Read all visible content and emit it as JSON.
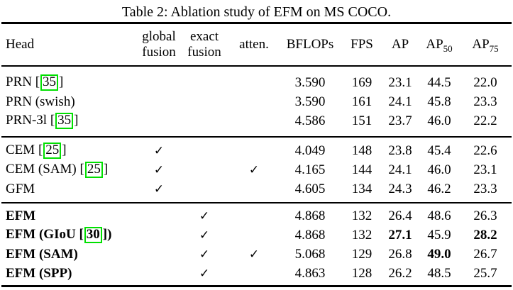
{
  "title": "Table 2: Ablation study of EFM on MS COCO.",
  "check_glyph": "✓",
  "colors": {
    "citation_box": "#00e000",
    "rule": "#000000",
    "text": "#000000",
    "background": "#ffffff"
  },
  "table": {
    "header": {
      "head": "Head",
      "global_fusion": {
        "line1": "global",
        "line2": "fusion"
      },
      "exact_fusion": {
        "line1": "exact",
        "line2": "fusion"
      },
      "atten": "atten.",
      "bflops": "BFLOPs",
      "fps": "FPS",
      "ap": "AP",
      "ap50": {
        "base": "AP",
        "sub": "50"
      },
      "ap75": {
        "base": "AP",
        "sub": "75"
      }
    },
    "value_columns": [
      "bflops",
      "fps",
      "ap",
      "ap50",
      "ap75"
    ],
    "groups": [
      {
        "rows": [
          {
            "head": {
              "pre": "PRN ",
              "cite": "35",
              "post": ""
            },
            "bold": false,
            "checks": {
              "global": false,
              "exact": false,
              "atten": false
            },
            "values": [
              "3.590",
              "169",
              "23.1",
              "44.5",
              "22.0"
            ],
            "bold_values": [
              false,
              false,
              false,
              false,
              false
            ]
          },
          {
            "head": {
              "pre": "PRN (swish)"
            },
            "bold": false,
            "checks": {
              "global": false,
              "exact": false,
              "atten": false
            },
            "values": [
              "3.590",
              "161",
              "24.1",
              "45.8",
              "23.3"
            ],
            "bold_values": [
              false,
              false,
              false,
              false,
              false
            ]
          },
          {
            "head": {
              "pre": "PRN-3l ",
              "cite": "35",
              "post": ""
            },
            "bold": false,
            "checks": {
              "global": false,
              "exact": false,
              "atten": false
            },
            "values": [
              "4.586",
              "151",
              "23.7",
              "46.0",
              "22.2"
            ],
            "bold_values": [
              false,
              false,
              false,
              false,
              false
            ]
          }
        ]
      },
      {
        "rows": [
          {
            "head": {
              "pre": "CEM ",
              "cite": "25",
              "post": ""
            },
            "bold": false,
            "checks": {
              "global": true,
              "exact": false,
              "atten": false
            },
            "values": [
              "4.049",
              "148",
              "23.8",
              "45.4",
              "22.6"
            ],
            "bold_values": [
              false,
              false,
              false,
              false,
              false
            ]
          },
          {
            "head": {
              "pre": "CEM (SAM) ",
              "cite": "25",
              "post": ""
            },
            "bold": false,
            "checks": {
              "global": true,
              "exact": false,
              "atten": true
            },
            "values": [
              "4.165",
              "144",
              "24.1",
              "46.0",
              "23.1"
            ],
            "bold_values": [
              false,
              false,
              false,
              false,
              false
            ]
          },
          {
            "head": {
              "pre": "GFM"
            },
            "bold": false,
            "checks": {
              "global": true,
              "exact": false,
              "atten": false
            },
            "values": [
              "4.605",
              "134",
              "24.3",
              "46.2",
              "23.3"
            ],
            "bold_values": [
              false,
              false,
              false,
              false,
              false
            ]
          }
        ]
      },
      {
        "rows": [
          {
            "head": {
              "pre": "EFM"
            },
            "bold": true,
            "checks": {
              "global": false,
              "exact": true,
              "atten": false
            },
            "values": [
              "4.868",
              "132",
              "26.4",
              "48.6",
              "26.3"
            ],
            "bold_values": [
              false,
              false,
              false,
              false,
              false
            ]
          },
          {
            "head": {
              "pre": "EFM (GIoU ",
              "cite": "30",
              "post": ")"
            },
            "bold": true,
            "checks": {
              "global": false,
              "exact": true,
              "atten": false
            },
            "values": [
              "4.868",
              "132",
              "27.1",
              "45.9",
              "28.2"
            ],
            "bold_values": [
              false,
              false,
              true,
              false,
              true
            ]
          },
          {
            "head": {
              "pre": "EFM (SAM)"
            },
            "bold": true,
            "checks": {
              "global": false,
              "exact": true,
              "atten": true
            },
            "values": [
              "5.068",
              "129",
              "26.8",
              "49.0",
              "26.7"
            ],
            "bold_values": [
              false,
              false,
              false,
              true,
              false
            ]
          },
          {
            "head": {
              "pre": "EFM (SPP)"
            },
            "bold": true,
            "checks": {
              "global": false,
              "exact": true,
              "atten": false
            },
            "values": [
              "4.863",
              "128",
              "26.2",
              "48.5",
              "25.7"
            ],
            "bold_values": [
              false,
              false,
              false,
              false,
              false
            ]
          }
        ]
      }
    ]
  }
}
